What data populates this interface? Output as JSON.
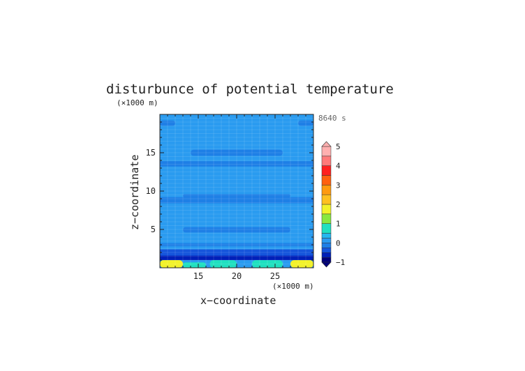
{
  "chart_data": {
    "type": "heatmap",
    "title": "disturbunce of potential temperature",
    "time_label": "8640 s",
    "xlabel": "x−coordinate",
    "ylabel": "z−coordinate",
    "x_unit": "(×1000 m)",
    "y_unit": "(×1000 m)",
    "xlim": [
      10,
      30
    ],
    "ylim": [
      0,
      20
    ],
    "x_ticks": [
      "15",
      "20",
      "25"
    ],
    "y_ticks": [
      "5",
      "10",
      "15"
    ],
    "colorbar": {
      "labels": [
        "5",
        "4",
        "3",
        "2",
        "1",
        "0",
        "−1"
      ],
      "range": [
        -1,
        5
      ],
      "levels": [
        {
          "from": -1.0,
          "to": -0.75,
          "color": "#00007a"
        },
        {
          "from": -0.75,
          "to": -0.5,
          "color": "#0020b8"
        },
        {
          "from": -0.5,
          "to": -0.25,
          "color": "#1555dc"
        },
        {
          "from": -0.25,
          "to": 0.0,
          "color": "#1e7fe6"
        },
        {
          "from": 0.0,
          "to": 0.25,
          "color": "#2a9bf0"
        },
        {
          "from": 0.25,
          "to": 0.5,
          "color": "#24b8ef"
        },
        {
          "from": 0.5,
          "to": 1.0,
          "color": "#20e0c0"
        },
        {
          "from": 1.0,
          "to": 1.5,
          "color": "#88e840"
        },
        {
          "from": 1.5,
          "to": 2.0,
          "color": "#f2f22a"
        },
        {
          "from": 2.0,
          "to": 2.5,
          "color": "#ffc020"
        },
        {
          "from": 2.5,
          "to": 3.0,
          "color": "#ff9a10"
        },
        {
          "from": 3.0,
          "to": 3.5,
          "color": "#ff6010"
        },
        {
          "from": 3.5,
          "to": 4.0,
          "color": "#ff2020"
        },
        {
          "from": 4.0,
          "to": 4.5,
          "color": "#ff7a7a"
        },
        {
          "from": 4.5,
          "to": 5.0,
          "color": "#ffb0b0"
        }
      ]
    },
    "bands": [
      {
        "z": [
          0.0,
          1.0
        ],
        "x": [
          10,
          30
        ],
        "value": 0.1
      },
      {
        "z": [
          0.0,
          1.0
        ],
        "x": [
          10,
          13
        ],
        "value": 1.7
      },
      {
        "z": [
          0.0,
          0.7
        ],
        "x": [
          13,
          16
        ],
        "value": 0.8
      },
      {
        "z": [
          0.0,
          1.0
        ],
        "x": [
          16.5,
          20
        ],
        "value": 0.8
      },
      {
        "z": [
          0.0,
          1.0
        ],
        "x": [
          22,
          26
        ],
        "value": 0.8
      },
      {
        "z": [
          0.0,
          1.0
        ],
        "x": [
          27,
          30
        ],
        "value": 1.7
      },
      {
        "z": [
          1.0,
          1.6
        ],
        "x": [
          10,
          30
        ],
        "value": -0.7
      },
      {
        "z": [
          1.6,
          2.4
        ],
        "x": [
          10,
          30
        ],
        "value": -0.35
      },
      {
        "z": [
          2.8,
          3.2
        ],
        "x": [
          10,
          30
        ],
        "value": -0.2
      },
      {
        "z": [
          4.6,
          5.3
        ],
        "x": [
          13,
          27
        ],
        "value": -0.25
      },
      {
        "z": [
          8.4,
          9.2
        ],
        "x": [
          10,
          30
        ],
        "value": -0.2
      },
      {
        "z": [
          9.2,
          9.6
        ],
        "x": [
          13,
          27
        ],
        "value": -0.15
      },
      {
        "z": [
          13.2,
          13.9
        ],
        "x": [
          10,
          30
        ],
        "value": -0.2
      },
      {
        "z": [
          14.6,
          15.4
        ],
        "x": [
          14,
          26
        ],
        "value": -0.2
      },
      {
        "z": [
          18.5,
          19.2
        ],
        "x": [
          10,
          12
        ],
        "value": -0.1
      },
      {
        "z": [
          18.5,
          19.2
        ],
        "x": [
          28,
          30
        ],
        "value": -0.1
      }
    ],
    "background_value": 0.1
  }
}
